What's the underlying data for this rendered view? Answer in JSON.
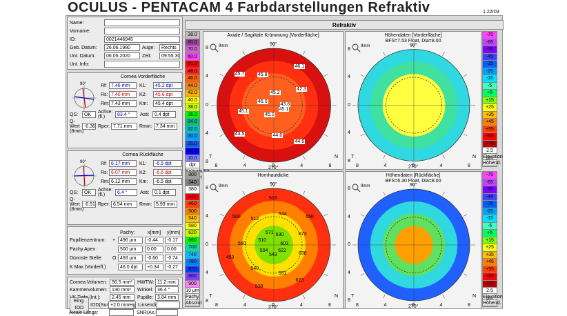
{
  "title": "OCULUS  -  PENTACAM   4 Farbdarstellungen Refraktiv",
  "version": "1.22r03",
  "header": "Refraktiv",
  "patient": {
    "name_label": "Name:",
    "vorname_label": "Vorname:",
    "id_label": "ID:",
    "id": "0021446945",
    "geb_label": "Geb. Datum:",
    "geb": "26.06.1980",
    "auge_label": "Auge:",
    "auge": "Rechts",
    "unt_label": "Unt. Datum:",
    "unt": "06.05.2020",
    "zeit_label": "Zeit:",
    "zeit": "09:55:30",
    "info_label": "Unt. Info:"
  },
  "front": {
    "title": "Cornea Vorderfläche",
    "rf": "7.46 mm",
    "k1": "45.2 dpt",
    "rs": "7.40 mm",
    "k2": "45.6 dpt",
    "rm": "7.43 mm",
    "km": "45.4 dpt",
    "qs": "OK",
    "achse": "83.4 °",
    "asti": "0.4 dpt",
    "q": "-0.36",
    "rper": "7.71 mm",
    "rmin": "7.34 mm"
  },
  "back": {
    "title": "Cornea Rückfläche",
    "rf": "6.17 mm",
    "k1": "-6.5 dpt",
    "rs": "6.07 mm",
    "k2": "-6.6 dpt",
    "rm": "6.12 mm",
    "km": "-6.5 dpt",
    "qs": "OK",
    "achse": "6.4 °",
    "asti": "0.1 dpt",
    "q": "-0.51",
    "rper": "6.54 mm",
    "rmin": "5.99 mm"
  },
  "labels": {
    "rf": "Rf:",
    "k1": "K1:",
    "rs": "Rs:",
    "k2": "K2:",
    "rm": "Rm:",
    "km": "Km:",
    "qs": "QS:",
    "achse": "Achse: (fl.)",
    "asti": "Asti:",
    "q": "Q-Wert (8mm)",
    "rper": "Rper:",
    "rmin": "Rmin:"
  },
  "pachy": {
    "h_pachy": "Pachy:",
    "h_x": "x[mm]",
    "h_y": "y[mm]",
    "rows": [
      {
        "l": "Pupillenzentrum:",
        "m": "+",
        "v": "496 µm",
        "x": "-0.44",
        "y": "-0.17"
      },
      {
        "l": "Pachy Apex :",
        "m": "",
        "v": "500 µm",
        "x": "0.00",
        "y": "0.00"
      },
      {
        "l": "Dünnste Stelle:",
        "m": "O",
        "v": "493 µm",
        "x": "-0.60",
        "y": "-0.74"
      },
      {
        "l": "K Max (Vorderfl.)",
        "m": "",
        "v": "46.0 dpt",
        "x": "+0.34",
        "y": "-0.27"
      }
    ]
  },
  "volumes": {
    "cv_l": "Cornea Volumen:",
    "cv": "56.5 mm³",
    "hwtw_l": "HWTW:",
    "hwtw": "11.2 mm",
    "kv_l": "Kammervolumen:",
    "kv": "130 mm³",
    "w_l": "Winkel:",
    "w": "36.4 °",
    "vk_l": "VK Tiefe (Int.):",
    "vk": "2.45 mm",
    "p_l": "Pupille:",
    "p": "3.84 mm",
    "iop_l": "Eing. IOD",
    "iodsum_l": "IOD(Sum)",
    "iodsum": "+2.0 mmHg",
    "lin_l": "Linsendi.:",
    "ax_l": "Axiale Länge:",
    "snr_l": "SNR(Ax.L."
  },
  "maps": {
    "tl": {
      "title": "Axiale / Sagittale Krümmung [Vorderfläche]",
      "unit": "dpt",
      "mode": "Krümmung",
      "sub": "Absolut",
      "scale": [
        "38.0",
        "80.0",
        "70.0",
        "60.0",
        "50.0",
        "48.0",
        "46.0",
        "44.0",
        "42.0",
        "40.0",
        "38.0",
        "36.0",
        "34.0",
        "32.0",
        "30.0",
        "25.0",
        "20.0",
        "10.0"
      ],
      "values": [
        "43.8",
        "42.3",
        "46.1",
        "45.2",
        "45.8",
        "45.7",
        "46.0",
        "45.1",
        "43.5",
        "45.0",
        "44.6",
        "44.6",
        "45.1"
      ]
    },
    "tr": {
      "title": "Höhendaten [Vorderfläche]",
      "sub": "BFS=7.53 Float, Dia=8.00",
      "unit": "2.5 µm",
      "mode": "Elevation",
      "sub2": "Höhend.",
      "scale": [
        "-75",
        "-65",
        "-55",
        "-45",
        "-35",
        "-25",
        "-15",
        "-5",
        "+5",
        "+15",
        "+25",
        "+35",
        "+45",
        "+55",
        "+65",
        "+75"
      ]
    },
    "bl": {
      "title": "Hornhautdicke",
      "unit": "10 µm",
      "mode": "Pachy.",
      "sub": "Absolut",
      "scale": [
        "300",
        "340",
        "380",
        "420",
        "460",
        "500",
        "540",
        "580",
        "620",
        "660",
        "700",
        "740",
        "780",
        "820",
        "860",
        "900"
      ],
      "values": [
        "603",
        "673",
        "650",
        "630",
        "544",
        "516",
        "571",
        "512",
        "500",
        "510",
        "560",
        "493",
        "504",
        "540",
        "538",
        "543",
        "551",
        "623",
        "622",
        "630"
      ]
    },
    "br": {
      "title": "Höhendaten [Rückfläche]",
      "sub": "BFS=6.30 Float, Dia=8.00",
      "unit": "2.5 µm",
      "mode": "Elevation",
      "sub2": "Höhend.",
      "scale": [
        "-75",
        "-65",
        "-55",
        "-45",
        "-35",
        "-25",
        "-15",
        "-5",
        "+5",
        "+15",
        "+25",
        "+35",
        "+45",
        "+55",
        "+65",
        "+75"
      ]
    }
  },
  "axis": {
    "t": "T",
    "n": "N",
    "deg0": "0°",
    "deg90": "90°",
    "deg180": "180°",
    "deg270": "270°",
    "mm": "9mm",
    "ticks": [
      "8",
      "4",
      "0",
      "4",
      "8"
    ]
  }
}
